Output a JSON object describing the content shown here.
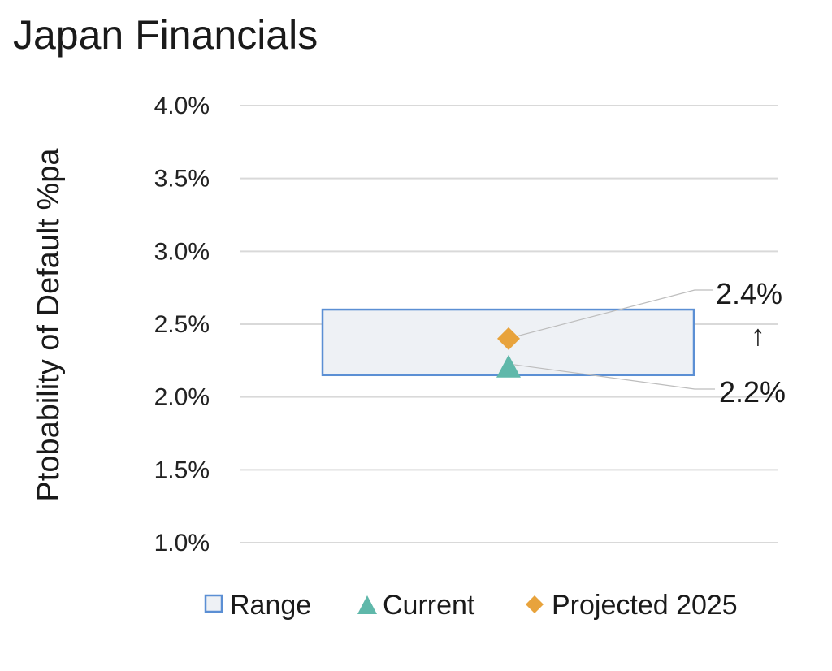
{
  "chart_data": {
    "type": "range",
    "title": "Japan Financials",
    "ylabel": "Ptobability of Default %pa",
    "ylim": [
      1.0,
      4.0
    ],
    "yticks": [
      "4.0%",
      "3.5%",
      "3.0%",
      "2.5%",
      "2.0%",
      "1.5%",
      "1.0%"
    ],
    "ytick_values": [
      4.0,
      3.5,
      3.0,
      2.5,
      2.0,
      1.5,
      1.0
    ],
    "grid": true,
    "range": {
      "name": "Range",
      "low": 2.15,
      "high": 2.6
    },
    "current": {
      "name": "Current",
      "value": 2.2,
      "label": "2.2%"
    },
    "projected": {
      "name": "Projected 2025",
      "value": 2.4,
      "label": "2.4%"
    },
    "direction_glyph": "↑",
    "legend": [
      "Range",
      "Current",
      "Projected 2025"
    ],
    "legend_position": "bottom",
    "colors": {
      "range_fill": "#eef1f5",
      "range_stroke": "#5b8fd4",
      "current": "#5fb8aa",
      "projected": "#e8a33c",
      "grid": "#d9d9d9"
    }
  }
}
